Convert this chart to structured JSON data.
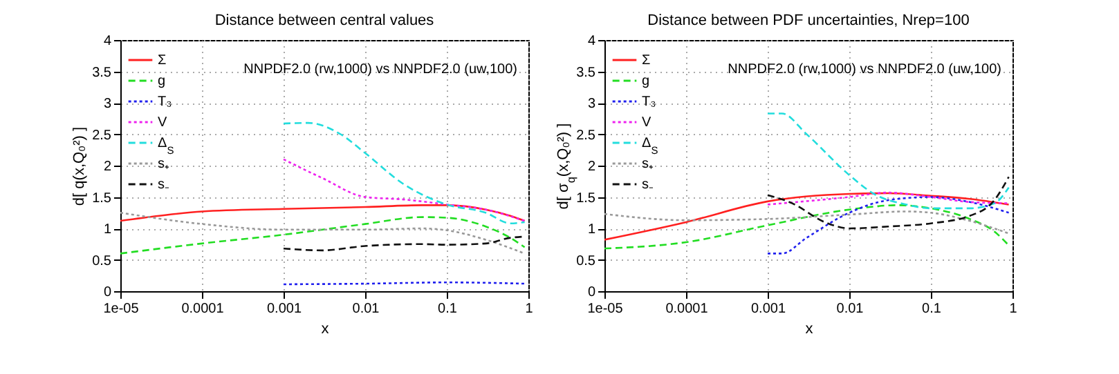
{
  "chart_data": [
    {
      "type": "line",
      "title": "Distance between central values",
      "xlabel": "x",
      "ylabel": "d[ q(x,Q₀²) ]",
      "annotations": [
        "NNPDF2.0 (rw,1000) vs NNPDF2.0 (uw,100)"
      ],
      "log": "x",
      "grid": true,
      "legend": "top left",
      "marker": "none",
      "xlim": [
        1e-05,
        1
      ],
      "xticks": [
        {
          "value": 1e-05,
          "label": "1e-05"
        },
        {
          "value": 0.0001,
          "label": "0.0001"
        },
        {
          "value": 0.001,
          "label": "0.001"
        },
        {
          "value": 0.01,
          "label": "0.01"
        },
        {
          "value": 0.1,
          "label": "0.1"
        },
        {
          "value": 1,
          "label": "1"
        }
      ],
      "ylim": [
        0,
        4
      ],
      "yticks": [
        0,
        0.5,
        1,
        1.5,
        2,
        2.5,
        3,
        3.5,
        4
      ],
      "series": [
        {
          "name": "Σ",
          "color": "#ff2020",
          "line_style": "solid",
          "x": [
            1e-05,
            3e-05,
            0.0001,
            0.001,
            0.01,
            0.05,
            0.1,
            0.3,
            0.6,
            0.9
          ],
          "values": [
            1.12,
            1.2,
            1.27,
            1.31,
            1.34,
            1.37,
            1.37,
            1.3,
            1.2,
            1.12
          ]
        },
        {
          "name": "g",
          "color": "#22dd22",
          "line_style": "dashed",
          "x": [
            1e-05,
            0.0001,
            0.001,
            0.01,
            0.05,
            0.1,
            0.3,
            0.6,
            0.9
          ],
          "values": [
            0.6,
            0.76,
            0.9,
            1.07,
            1.18,
            1.17,
            1.03,
            0.85,
            0.7
          ]
        },
        {
          "name": "T₃",
          "color": "#2020ee",
          "line_style": "dotted",
          "x": [
            0.001,
            0.01,
            0.1,
            0.9
          ],
          "values": [
            0.11,
            0.12,
            0.14,
            0.12
          ]
        },
        {
          "name": "V",
          "color": "#ee22ee",
          "line_style": "dotted",
          "x": [
            0.001,
            0.003,
            0.01,
            0.03,
            0.1,
            0.3,
            0.9
          ],
          "values": [
            2.1,
            1.8,
            1.5,
            1.46,
            1.38,
            1.3,
            1.12
          ]
        },
        {
          "name": "Δ$_{S}$",
          "color": "#22dddd",
          "line_style": "dashed",
          "x": [
            0.001,
            0.002,
            0.005,
            0.01,
            0.03,
            0.1,
            0.3,
            0.6,
            0.9
          ],
          "values": [
            2.67,
            2.68,
            2.5,
            2.2,
            1.7,
            1.38,
            1.25,
            1.08,
            1.1
          ]
        },
        {
          "name": "s₊",
          "color": "#999999",
          "line_style": "dotted",
          "x": [
            1e-05,
            0.0001,
            0.001,
            0.01,
            0.05,
            0.1,
            0.3,
            0.9
          ],
          "values": [
            1.25,
            1.07,
            0.98,
            0.98,
            1.0,
            0.97,
            0.82,
            0.6
          ]
        },
        {
          "name": "s₋",
          "color": "#111111",
          "line_style": "dashed",
          "x": [
            0.001,
            0.003,
            0.01,
            0.05,
            0.1,
            0.3,
            0.6,
            0.9
          ],
          "values": [
            0.68,
            0.65,
            0.72,
            0.75,
            0.74,
            0.76,
            0.85,
            0.87
          ]
        }
      ]
    },
    {
      "type": "line",
      "title": "Distance between PDF uncertainties, Nrep=100",
      "xlabel": "x",
      "ylabel": "d[ σ$_{q}$(x,Q₀²) ]",
      "annotations": [
        "NNPDF2.0 (rw,1000) vs NNPDF2.0 (uw,100)"
      ],
      "log": "x",
      "grid": true,
      "legend": "top left",
      "marker": "none",
      "xlim": [
        1e-05,
        1
      ],
      "xticks": [
        {
          "value": 1e-05,
          "label": "1e-05"
        },
        {
          "value": 0.0001,
          "label": "0.0001"
        },
        {
          "value": 0.001,
          "label": "0.001"
        },
        {
          "value": 0.01,
          "label": "0.01"
        },
        {
          "value": 0.1,
          "label": "0.1"
        },
        {
          "value": 1,
          "label": "1"
        }
      ],
      "ylim": [
        0,
        4
      ],
      "yticks": [
        0,
        0.5,
        1,
        1.5,
        2,
        2.5,
        3,
        3.5,
        4
      ],
      "series": [
        {
          "name": "Σ",
          "color": "#ff2020",
          "line_style": "solid",
          "x": [
            1e-05,
            0.0001,
            0.001,
            0.01,
            0.03,
            0.1,
            0.3,
            0.9
          ],
          "values": [
            0.82,
            1.1,
            1.43,
            1.55,
            1.56,
            1.52,
            1.47,
            1.38
          ]
        },
        {
          "name": "g",
          "color": "#22dd22",
          "line_style": "dashed",
          "x": [
            1e-05,
            0.0001,
            0.001,
            0.01,
            0.04,
            0.1,
            0.3,
            0.6,
            0.9
          ],
          "values": [
            0.68,
            0.78,
            1.05,
            1.3,
            1.37,
            1.32,
            1.15,
            0.95,
            0.73
          ]
        },
        {
          "name": "T₃",
          "color": "#2020ee",
          "line_style": "dotted",
          "x": [
            0.001,
            0.0015,
            0.003,
            0.01,
            0.03,
            0.1,
            0.3,
            0.9
          ],
          "values": [
            0.6,
            0.6,
            0.85,
            1.25,
            1.45,
            1.5,
            1.42,
            1.25
          ]
        },
        {
          "name": "V",
          "color": "#ee22ee",
          "line_style": "dotted",
          "x": [
            0.001,
            0.01,
            0.03,
            0.1,
            0.3,
            0.9
          ],
          "values": [
            1.38,
            1.5,
            1.57,
            1.5,
            1.42,
            1.4
          ]
        },
        {
          "name": "Δ$_{S}$",
          "color": "#22dddd",
          "line_style": "dashed",
          "x": [
            0.001,
            0.0015,
            0.003,
            0.01,
            0.02,
            0.05,
            0.1,
            0.3,
            0.6,
            0.9
          ],
          "values": [
            2.83,
            2.83,
            2.5,
            1.85,
            1.55,
            1.38,
            1.32,
            1.32,
            1.4,
            1.65
          ]
        },
        {
          "name": "s₊",
          "color": "#999999",
          "line_style": "dotted",
          "x": [
            1e-05,
            0.0001,
            0.001,
            0.01,
            0.05,
            0.1,
            0.3,
            0.9
          ],
          "values": [
            1.23,
            1.13,
            1.15,
            1.22,
            1.27,
            1.25,
            1.12,
            0.92
          ]
        },
        {
          "name": "s₋",
          "color": "#111111",
          "line_style": "dashed",
          "x": [
            0.001,
            0.002,
            0.005,
            0.01,
            0.03,
            0.1,
            0.3,
            0.6,
            0.9
          ],
          "values": [
            1.53,
            1.4,
            1.1,
            1.0,
            1.03,
            1.08,
            1.2,
            1.45,
            1.82
          ]
        }
      ]
    }
  ]
}
